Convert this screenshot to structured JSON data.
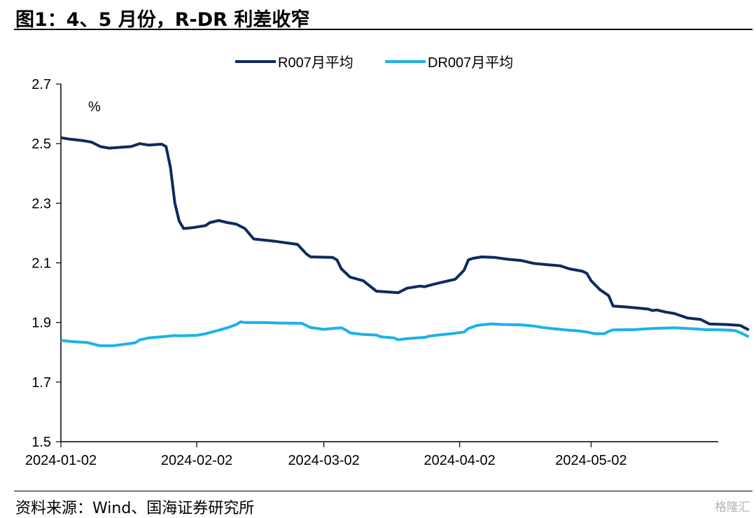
{
  "header": {
    "title": "图1：4、5 月份，R-DR 利差收窄"
  },
  "footer": {
    "source": "资料来源：Wind、国海证券研究所",
    "watermark": "格隆汇"
  },
  "chart_data": {
    "type": "line",
    "title": "图1：4、5 月份，R-DR 利差收窄",
    "unit": "%",
    "xlabel": "",
    "ylabel": "",
    "ylim": [
      1.5,
      2.7
    ],
    "yticks": [
      "1.5",
      "1.7",
      "1.9",
      "2.1",
      "2.3",
      "2.5",
      "2.7"
    ],
    "xlim": [
      "2024-01-02",
      "2024-05-31"
    ],
    "xticks": [
      "2024-01-02",
      "2024-02-02",
      "2024-03-02",
      "2024-04-02",
      "2024-05-02"
    ],
    "grid": false,
    "legend": "top-center",
    "series": [
      {
        "name": "R007月平均",
        "color": "#0f2a5e",
        "points": [
          [
            "2024-01-02",
            2.52
          ],
          [
            "2024-01-04",
            2.515
          ],
          [
            "2024-01-07",
            2.51
          ],
          [
            "2024-01-09",
            2.505
          ],
          [
            "2024-01-11",
            2.49
          ],
          [
            "2024-01-13",
            2.485
          ],
          [
            "2024-01-16",
            2.488
          ],
          [
            "2024-01-18",
            2.49
          ],
          [
            "2024-01-20",
            2.5
          ],
          [
            "2024-01-22",
            2.495
          ],
          [
            "2024-01-25",
            2.498
          ],
          [
            "2024-01-26",
            2.49
          ],
          [
            "2024-01-27",
            2.42
          ],
          [
            "2024-01-28",
            2.3
          ],
          [
            "2024-01-29",
            2.24
          ],
          [
            "2024-01-30",
            2.215
          ],
          [
            "2024-02-01",
            2.218
          ],
          [
            "2024-02-04",
            2.225
          ],
          [
            "2024-02-05",
            2.235
          ],
          [
            "2024-02-07",
            2.242
          ],
          [
            "2024-02-09",
            2.235
          ],
          [
            "2024-02-11",
            2.23
          ],
          [
            "2024-02-13",
            2.215
          ],
          [
            "2024-02-15",
            2.18
          ],
          [
            "2024-02-20",
            2.172
          ],
          [
            "2024-02-25",
            2.162
          ],
          [
            "2024-02-27",
            2.13
          ],
          [
            "2024-02-28",
            2.12
          ],
          [
            "2024-03-04",
            2.118
          ],
          [
            "2024-03-05",
            2.11
          ],
          [
            "2024-03-06",
            2.08
          ],
          [
            "2024-03-08",
            2.052
          ],
          [
            "2024-03-11",
            2.04
          ],
          [
            "2024-03-14",
            2.005
          ],
          [
            "2024-03-17",
            2.002
          ],
          [
            "2024-03-19",
            2.0
          ],
          [
            "2024-03-21",
            2.015
          ],
          [
            "2024-03-24",
            2.022
          ],
          [
            "2024-03-25",
            2.02
          ],
          [
            "2024-03-27",
            2.028
          ],
          [
            "2024-03-29",
            2.035
          ],
          [
            "2024-04-01",
            2.045
          ],
          [
            "2024-04-03",
            2.075
          ],
          [
            "2024-04-04",
            2.11
          ],
          [
            "2024-04-05",
            2.115
          ],
          [
            "2024-04-07",
            2.12
          ],
          [
            "2024-04-10",
            2.118
          ],
          [
            "2024-04-13",
            2.112
          ],
          [
            "2024-04-16",
            2.108
          ],
          [
            "2024-04-19",
            2.098
          ],
          [
            "2024-04-22",
            2.094
          ],
          [
            "2024-04-25",
            2.09
          ],
          [
            "2024-04-27",
            2.08
          ],
          [
            "2024-04-30",
            2.072
          ],
          [
            "2024-05-01",
            2.065
          ],
          [
            "2024-05-02",
            2.04
          ],
          [
            "2024-05-04",
            2.01
          ],
          [
            "2024-05-06",
            1.99
          ],
          [
            "2024-05-07",
            1.955
          ],
          [
            "2024-05-10",
            1.952
          ],
          [
            "2024-05-15",
            1.945
          ],
          [
            "2024-05-16",
            1.94
          ],
          [
            "2024-05-17",
            1.942
          ],
          [
            "2024-05-19",
            1.935
          ],
          [
            "2024-05-21",
            1.93
          ],
          [
            "2024-05-24",
            1.915
          ],
          [
            "2024-05-27",
            1.91
          ],
          [
            "2024-05-29",
            1.895
          ],
          [
            "2024-06-02",
            1.893
          ],
          [
            "2024-06-05",
            1.89
          ],
          [
            "2024-06-07",
            1.875
          ]
        ]
      },
      {
        "name": "DR007月平均",
        "color": "#1cb2ea",
        "points": [
          [
            "2024-01-02",
            1.84
          ],
          [
            "2024-01-05",
            1.835
          ],
          [
            "2024-01-08",
            1.833
          ],
          [
            "2024-01-10",
            1.825
          ],
          [
            "2024-01-11",
            1.822
          ],
          [
            "2024-01-14",
            1.822
          ],
          [
            "2024-01-16",
            1.826
          ],
          [
            "2024-01-19",
            1.832
          ],
          [
            "2024-01-20",
            1.842
          ],
          [
            "2024-01-22",
            1.848
          ],
          [
            "2024-01-25",
            1.852
          ],
          [
            "2024-01-28",
            1.856
          ],
          [
            "2024-01-29",
            1.855
          ],
          [
            "2024-02-02",
            1.857
          ],
          [
            "2024-02-04",
            1.862
          ],
          [
            "2024-02-06",
            1.87
          ],
          [
            "2024-02-09",
            1.882
          ],
          [
            "2024-02-11",
            1.893
          ],
          [
            "2024-02-12",
            1.902
          ],
          [
            "2024-02-13",
            1.9
          ],
          [
            "2024-02-17",
            1.9
          ],
          [
            "2024-02-21",
            1.898
          ],
          [
            "2024-02-26",
            1.897
          ],
          [
            "2024-02-28",
            1.883
          ],
          [
            "2024-03-02",
            1.877
          ],
          [
            "2024-03-04",
            1.88
          ],
          [
            "2024-03-06",
            1.882
          ],
          [
            "2024-03-07",
            1.875
          ],
          [
            "2024-03-08",
            1.865
          ],
          [
            "2024-03-11",
            1.86
          ],
          [
            "2024-03-14",
            1.858
          ],
          [
            "2024-03-15",
            1.852
          ],
          [
            "2024-03-18",
            1.848
          ],
          [
            "2024-03-19",
            1.842
          ],
          [
            "2024-03-21",
            1.846
          ],
          [
            "2024-03-25",
            1.85
          ],
          [
            "2024-03-26",
            1.854
          ],
          [
            "2024-03-28",
            1.858
          ],
          [
            "2024-03-31",
            1.862
          ],
          [
            "2024-04-03",
            1.868
          ],
          [
            "2024-04-04",
            1.88
          ],
          [
            "2024-04-06",
            1.89
          ],
          [
            "2024-04-09",
            1.895
          ],
          [
            "2024-04-12",
            1.893
          ],
          [
            "2024-04-16",
            1.892
          ],
          [
            "2024-04-19",
            1.888
          ],
          [
            "2024-04-21",
            1.883
          ],
          [
            "2024-04-24",
            1.878
          ],
          [
            "2024-04-27",
            1.874
          ],
          [
            "2024-04-29",
            1.872
          ],
          [
            "2024-05-01",
            1.868
          ],
          [
            "2024-05-03",
            1.862
          ],
          [
            "2024-05-05",
            1.862
          ],
          [
            "2024-05-06",
            1.87
          ],
          [
            "2024-05-07",
            1.875
          ],
          [
            "2024-05-12",
            1.876
          ],
          [
            "2024-05-14",
            1.878
          ],
          [
            "2024-05-16",
            1.88
          ],
          [
            "2024-05-21",
            1.882
          ],
          [
            "2024-05-26",
            1.878
          ],
          [
            "2024-05-28",
            1.876
          ],
          [
            "2024-06-01",
            1.875
          ],
          [
            "2024-06-03",
            1.874
          ],
          [
            "2024-06-04",
            1.872
          ],
          [
            "2024-06-05",
            1.866
          ],
          [
            "2024-06-07",
            1.852
          ]
        ]
      }
    ]
  }
}
